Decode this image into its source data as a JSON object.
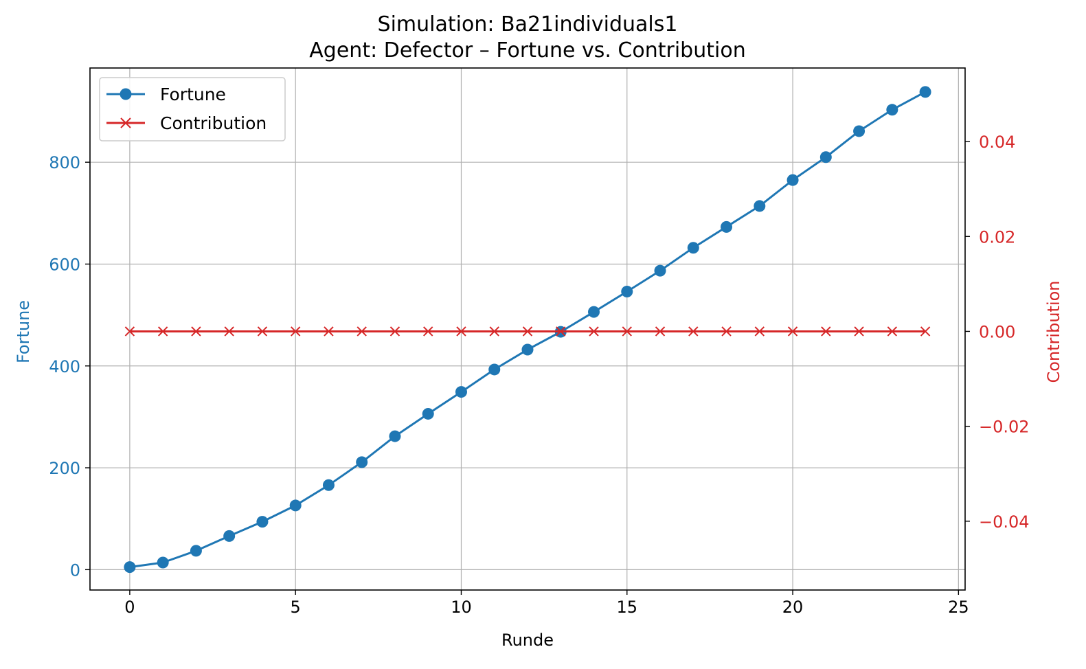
{
  "chart_data": {
    "type": "line",
    "title": "Simulation: Ba21individuals1",
    "subtitle": "Agent: Defector – Fortune vs. Contribution",
    "xlabel": "Runde",
    "ylabel": "Fortune",
    "y2label": "Contribution",
    "xlim": [
      -1.2,
      25.2
    ],
    "ylim": [
      -40,
      985
    ],
    "y2lim": [
      -0.0545,
      0.0555
    ],
    "x_ticks": [
      0,
      5,
      10,
      15,
      20,
      25
    ],
    "y_ticks": [
      0,
      200,
      400,
      600,
      800
    ],
    "y2_ticks": [
      -0.04,
      -0.02,
      0.0,
      0.02,
      0.04
    ],
    "y2_tick_labels": [
      "−0.04",
      "−0.02",
      "0.00",
      "0.02",
      "0.04"
    ],
    "grid": true,
    "legend_position": "top-left",
    "x": [
      0,
      1,
      2,
      3,
      4,
      5,
      6,
      7,
      8,
      9,
      10,
      11,
      12,
      13,
      14,
      15,
      16,
      17,
      18,
      19,
      20,
      21,
      22,
      23,
      24
    ],
    "series": [
      {
        "name": "Fortune",
        "axis": "left",
        "color": "#1f77b4",
        "marker": "circle",
        "values": [
          5,
          14,
          37,
          66,
          94,
          126,
          166,
          211,
          262,
          306,
          349,
          393,
          432,
          467,
          506,
          546,
          587,
          632,
          673,
          714,
          765,
          810,
          861,
          903,
          938
        ]
      },
      {
        "name": "Contribution",
        "axis": "right",
        "color": "#d62728",
        "marker": "x",
        "values": [
          0,
          0,
          0,
          0,
          0,
          0,
          0,
          0,
          0,
          0,
          0,
          0,
          0,
          0,
          0,
          0,
          0,
          0,
          0,
          0,
          0,
          0,
          0,
          0,
          0
        ]
      }
    ]
  }
}
